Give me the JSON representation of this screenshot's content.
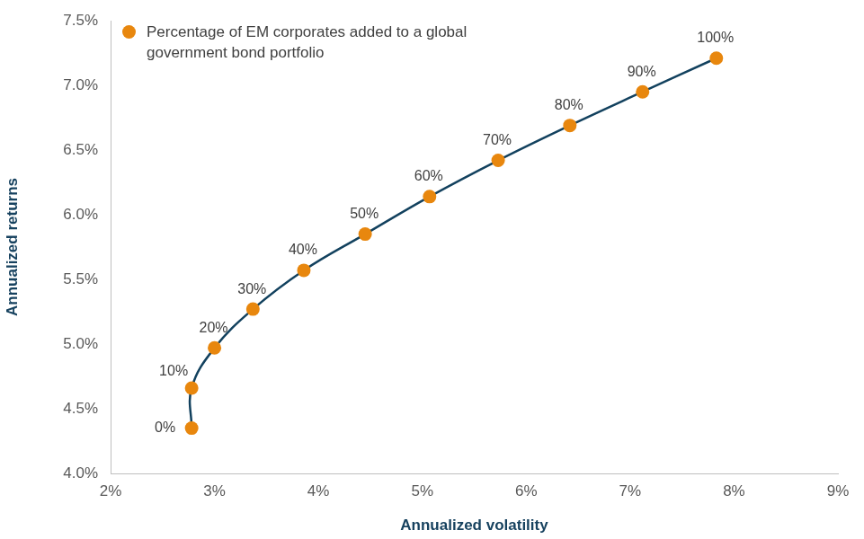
{
  "chart_data": {
    "type": "scatter",
    "xlabel": "Annualized volatility",
    "ylabel": "Annualized returns",
    "xlim": [
      2,
      9
    ],
    "xticks": [
      {
        "value": 2,
        "label": "2%"
      },
      {
        "value": 3,
        "label": "3%"
      },
      {
        "value": 4,
        "label": "4%"
      },
      {
        "value": 5,
        "label": "5%"
      },
      {
        "value": 6,
        "label": "6%"
      },
      {
        "value": 7,
        "label": "7%"
      },
      {
        "value": 8,
        "label": "8%"
      },
      {
        "value": 9,
        "label": "9%"
      }
    ],
    "ylim": [
      4,
      7.5
    ],
    "yticks": [
      {
        "value": 4,
        "label": "4.0%"
      },
      {
        "value": 4.5,
        "label": "4.5%"
      },
      {
        "value": 5,
        "label": "5.0%"
      },
      {
        "value": 5.5,
        "label": "5.5%"
      },
      {
        "value": 6,
        "label": "6.0%"
      },
      {
        "value": 6.5,
        "label": "6.5%"
      },
      {
        "value": 7,
        "label": "7.0%"
      },
      {
        "value": 7.5,
        "label": "7.5%"
      }
    ],
    "grid": false,
    "legend": "upper left",
    "marker": "circle",
    "line_style": "solid",
    "series": [
      {
        "name": "Percentage of EM corporates added to a global government bond portfolio",
        "color": "#e8870e",
        "x": [
          2.78,
          2.78,
          3.0,
          3.37,
          3.86,
          4.45,
          5.07,
          5.73,
          6.42,
          7.12,
          7.83
        ],
        "values": [
          4.35,
          4.66,
          4.97,
          5.27,
          5.57,
          5.85,
          6.14,
          6.42,
          6.69,
          6.95,
          7.21
        ],
        "point_labels": [
          "0%",
          "10%",
          "20%",
          "30%",
          "40%",
          "50%",
          "60%",
          "70%",
          "80%",
          "90%",
          "100%"
        ]
      }
    ]
  }
}
